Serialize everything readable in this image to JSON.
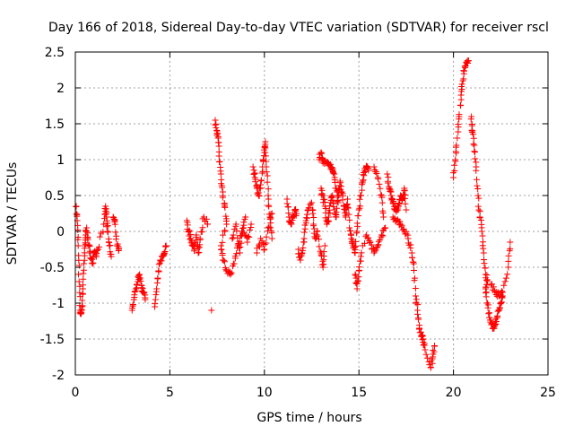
{
  "chart_data": {
    "type": "scatter",
    "title": "Day 166 of 2018, Sidereal Day-to-day VTEC variation (SDTVAR) for receiver rscl",
    "xlabel": "GPS time / hours",
    "ylabel": "SDTVAR / TECUs",
    "xlim": [
      0,
      25
    ],
    "ylim": [
      -2,
      2.5
    ],
    "x_ticks": [
      0,
      5,
      10,
      15,
      20,
      25
    ],
    "x_tick_labels": [
      "0",
      "5",
      "10",
      "15",
      "20",
      "25"
    ],
    "y_ticks": [
      -2,
      -1.5,
      -1,
      -0.5,
      0,
      0.5,
      1,
      1.5,
      2,
      2.5
    ],
    "y_tick_labels": [
      "-2",
      "-1.5",
      "-1",
      "-0.5",
      "0",
      "0.5",
      "1",
      "1.5",
      "2",
      "2.5"
    ],
    "grid": true,
    "marker": "+",
    "color": "#ff0000",
    "series": [
      {
        "name": "SDTVAR",
        "trace": [
          [
            0.05,
            0.35
          ],
          [
            0.1,
            0.15
          ],
          [
            0.15,
            -0.2
          ],
          [
            0.2,
            -0.7
          ],
          [
            0.25,
            -1.1
          ],
          [
            0.3,
            -1.15
          ],
          [
            0.35,
            -1.05
          ],
          [
            0.4,
            -0.8
          ],
          [
            0.45,
            -0.45
          ],
          [
            0.5,
            -0.2
          ],
          [
            0.55,
            -0.05
          ],
          [
            0.6,
            0.05
          ],
          [
            0.7,
            -0.2
          ],
          [
            0.8,
            -0.3
          ],
          [
            0.9,
            -0.45
          ],
          [
            1.0,
            -0.3
          ],
          [
            1.1,
            -0.35
          ],
          [
            1.2,
            -0.25
          ],
          [
            1.5,
            0.1
          ],
          [
            1.6,
            0.35
          ],
          [
            1.65,
            0.2
          ],
          [
            1.7,
            0.0
          ],
          [
            1.8,
            -0.2
          ],
          [
            1.9,
            -0.35
          ],
          [
            2.0,
            0.2
          ],
          [
            2.1,
            0.15
          ],
          [
            2.2,
            -0.2
          ],
          [
            2.3,
            -0.25
          ],
          [
            3.0,
            -1.1
          ],
          [
            3.1,
            -0.95
          ],
          [
            3.2,
            -0.8
          ],
          [
            3.3,
            -0.7
          ],
          [
            3.4,
            -0.6
          ],
          [
            3.5,
            -0.75
          ],
          [
            3.6,
            -0.85
          ],
          [
            3.7,
            -0.95
          ],
          [
            4.2,
            -1.05
          ],
          [
            4.3,
            -0.8
          ],
          [
            4.4,
            -0.55
          ],
          [
            4.5,
            -0.4
          ],
          [
            4.6,
            -0.35
          ],
          [
            4.7,
            -0.3
          ],
          [
            4.8,
            -0.2
          ],
          [
            5.9,
            0.15
          ],
          [
            6.0,
            0.0
          ],
          [
            6.1,
            -0.1
          ],
          [
            6.2,
            -0.2
          ],
          [
            6.3,
            -0.25
          ],
          [
            6.4,
            -0.05
          ],
          [
            6.5,
            -0.3
          ],
          [
            6.6,
            -0.1
          ],
          [
            6.8,
            0.2
          ],
          [
            7.0,
            0.1
          ],
          [
            7.2,
            -1.1
          ],
          [
            7.4,
            1.55
          ],
          [
            7.5,
            1.4
          ],
          [
            7.55,
            1.3
          ],
          [
            7.6,
            1.05
          ],
          [
            7.7,
            0.8
          ],
          [
            7.8,
            0.55
          ],
          [
            7.9,
            0.35
          ],
          [
            8.0,
            0.1
          ],
          [
            7.7,
            -0.2
          ],
          [
            7.8,
            -0.4
          ],
          [
            8.0,
            -0.55
          ],
          [
            8.2,
            -0.6
          ],
          [
            8.4,
            -0.45
          ],
          [
            8.6,
            -0.2
          ],
          [
            8.8,
            0.0
          ],
          [
            9.0,
            0.2
          ],
          [
            8.3,
            -0.1
          ],
          [
            8.5,
            0.1
          ],
          [
            8.7,
            -0.3
          ],
          [
            8.9,
            0.05
          ],
          [
            9.1,
            -0.15
          ],
          [
            9.3,
            0.1
          ],
          [
            9.4,
            0.9
          ],
          [
            9.5,
            0.75
          ],
          [
            9.6,
            0.6
          ],
          [
            9.7,
            0.5
          ],
          [
            9.8,
            0.65
          ],
          [
            9.9,
            0.9
          ],
          [
            10.0,
            1.1
          ],
          [
            10.05,
            1.25
          ],
          [
            10.1,
            0.9
          ],
          [
            10.2,
            0.5
          ],
          [
            10.3,
            0.2
          ],
          [
            10.4,
            -0.1
          ],
          [
            9.6,
            -0.3
          ],
          [
            9.8,
            -0.1
          ],
          [
            10.0,
            -0.25
          ],
          [
            10.2,
            0.05
          ],
          [
            10.4,
            0.25
          ],
          [
            11.2,
            0.45
          ],
          [
            11.3,
            0.2
          ],
          [
            11.4,
            0.1
          ],
          [
            11.5,
            0.2
          ],
          [
            11.6,
            0.3
          ],
          [
            11.7,
            0.25
          ],
          [
            11.8,
            -0.25
          ],
          [
            11.9,
            -0.4
          ],
          [
            12.0,
            -0.3
          ],
          [
            12.1,
            -0.1
          ],
          [
            12.2,
            0.15
          ],
          [
            12.3,
            0.3
          ],
          [
            12.5,
            0.4
          ],
          [
            12.6,
            0.1
          ],
          [
            12.7,
            -0.1
          ],
          [
            12.8,
            0.0
          ],
          [
            13.0,
            -0.3
          ],
          [
            13.1,
            -0.5
          ],
          [
            13.2,
            -0.2
          ],
          [
            12.9,
            1.0
          ],
          [
            13.0,
            1.1
          ],
          [
            13.1,
            1.0
          ],
          [
            13.2,
            0.95
          ],
          [
            13.4,
            0.95
          ],
          [
            13.5,
            0.9
          ],
          [
            13.6,
            0.85
          ],
          [
            13.7,
            0.8
          ],
          [
            13.8,
            0.6
          ],
          [
            13.9,
            0.4
          ],
          [
            13.0,
            0.6
          ],
          [
            13.1,
            0.5
          ],
          [
            13.2,
            0.35
          ],
          [
            13.3,
            0.1
          ],
          [
            13.4,
            0.2
          ],
          [
            13.5,
            0.4
          ],
          [
            13.6,
            0.5
          ],
          [
            13.7,
            0.3
          ],
          [
            13.8,
            0.2
          ],
          [
            13.9,
            0.5
          ],
          [
            14.0,
            0.7
          ],
          [
            14.1,
            0.55
          ],
          [
            14.2,
            0.35
          ],
          [
            14.3,
            0.2
          ],
          [
            14.4,
            0.45
          ],
          [
            14.5,
            0.05
          ],
          [
            14.6,
            -0.1
          ],
          [
            14.7,
            -0.2
          ],
          [
            14.8,
            -0.3
          ],
          [
            14.9,
            0.0
          ],
          [
            15.0,
            0.3
          ],
          [
            15.1,
            0.5
          ],
          [
            15.2,
            0.7
          ],
          [
            15.3,
            0.85
          ],
          [
            15.4,
            0.9
          ],
          [
            15.5,
            0.85
          ],
          [
            14.8,
            -0.6
          ],
          [
            14.9,
            -0.8
          ],
          [
            15.0,
            -0.55
          ],
          [
            15.1,
            -0.35
          ],
          [
            15.4,
            -0.05
          ],
          [
            15.6,
            -0.15
          ],
          [
            15.8,
            -0.3
          ],
          [
            16.0,
            -0.2
          ],
          [
            16.2,
            -0.05
          ],
          [
            16.4,
            0.05
          ],
          [
            15.8,
            0.9
          ],
          [
            16.0,
            0.75
          ],
          [
            16.2,
            0.5
          ],
          [
            16.3,
            0.2
          ],
          [
            16.5,
            0.8
          ],
          [
            16.6,
            0.6
          ],
          [
            16.7,
            0.5
          ],
          [
            16.8,
            0.4
          ],
          [
            16.9,
            0.3
          ],
          [
            17.0,
            0.3
          ],
          [
            17.1,
            0.35
          ],
          [
            17.2,
            0.5
          ],
          [
            17.3,
            0.45
          ],
          [
            17.4,
            0.6
          ],
          [
            17.5,
            0.3
          ],
          [
            16.8,
            0.2
          ],
          [
            17.0,
            0.15
          ],
          [
            17.2,
            0.1
          ],
          [
            17.4,
            0.0
          ],
          [
            17.6,
            -0.1
          ],
          [
            17.8,
            -0.3
          ],
          [
            17.9,
            -0.45
          ],
          [
            18.0,
            -0.9
          ],
          [
            18.1,
            -1.1
          ],
          [
            18.2,
            -1.35
          ],
          [
            18.3,
            -1.45
          ],
          [
            18.4,
            -1.5
          ],
          [
            18.5,
            -1.65
          ],
          [
            18.8,
            -1.9
          ],
          [
            18.9,
            -1.75
          ],
          [
            19.0,
            -1.6
          ],
          [
            20.0,
            0.75
          ],
          [
            20.1,
            1.0
          ],
          [
            20.2,
            1.3
          ],
          [
            20.3,
            1.6
          ],
          [
            20.4,
            1.9
          ],
          [
            20.5,
            2.1
          ],
          [
            20.6,
            2.3
          ],
          [
            20.7,
            2.35
          ],
          [
            20.8,
            2.38
          ],
          [
            20.95,
            1.6
          ],
          [
            21.0,
            1.4
          ],
          [
            21.1,
            1.2
          ],
          [
            21.2,
            0.9
          ],
          [
            21.3,
            0.5
          ],
          [
            21.4,
            0.2
          ],
          [
            21.5,
            0.0
          ],
          [
            21.6,
            -0.3
          ],
          [
            21.7,
            -0.6
          ],
          [
            21.8,
            -0.7
          ],
          [
            21.7,
            -0.8
          ],
          [
            21.8,
            -1.0
          ],
          [
            21.9,
            -1.2
          ],
          [
            22.0,
            -1.3
          ],
          [
            22.1,
            -1.35
          ],
          [
            22.2,
            -1.3
          ],
          [
            22.3,
            -1.2
          ],
          [
            22.4,
            -1.1
          ],
          [
            22.5,
            -1.0
          ],
          [
            22.6,
            -0.9
          ],
          [
            22.0,
            -0.75
          ],
          [
            22.2,
            -0.85
          ],
          [
            22.4,
            -0.9
          ],
          [
            22.6,
            -0.85
          ],
          [
            22.9,
            -0.5
          ],
          [
            23.0,
            -0.15
          ]
        ]
      }
    ]
  }
}
